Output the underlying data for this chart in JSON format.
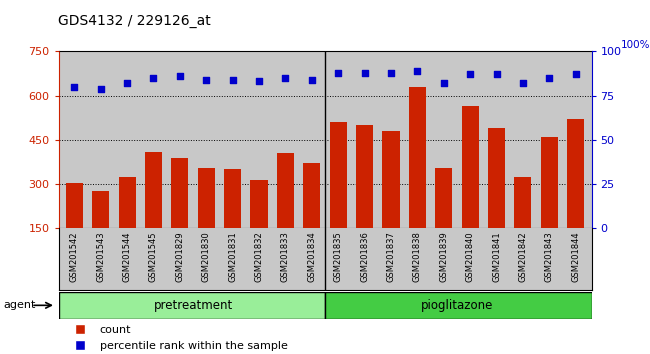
{
  "title": "GDS4132 / 229126_at",
  "samples": [
    "GSM201542",
    "GSM201543",
    "GSM201544",
    "GSM201545",
    "GSM201829",
    "GSM201830",
    "GSM201831",
    "GSM201832",
    "GSM201833",
    "GSM201834",
    "GSM201835",
    "GSM201836",
    "GSM201837",
    "GSM201838",
    "GSM201839",
    "GSM201840",
    "GSM201841",
    "GSM201842",
    "GSM201843",
    "GSM201844"
  ],
  "bar_values": [
    305,
    275,
    325,
    410,
    390,
    355,
    350,
    315,
    405,
    370,
    510,
    500,
    480,
    630,
    355,
    565,
    490,
    325,
    460,
    520
  ],
  "percentile_values": [
    80,
    79,
    82,
    85,
    86,
    84,
    84,
    83,
    85,
    84,
    88,
    88,
    88,
    89,
    82,
    87,
    87,
    82,
    85,
    87
  ],
  "bar_color": "#cc2200",
  "percentile_color": "#0000cc",
  "ylim_left": [
    150,
    750
  ],
  "ylim_right": [
    0,
    100
  ],
  "yticks_left": [
    150,
    300,
    450,
    600,
    750
  ],
  "yticks_right": [
    0,
    25,
    50,
    75,
    100
  ],
  "pretreatment_count": 10,
  "pioglitazone_count": 10,
  "pretreatment_color": "#99ee99",
  "pioglitazone_color": "#44cc44",
  "agent_label": "agent",
  "pretreatment_label": "pretreatment",
  "pioglitazone_label": "pioglitazone",
  "legend_count_label": "count",
  "legend_pct_label": "percentile rank within the sample",
  "plot_bg_color": "#c8c8c8",
  "right_axis_color": "#0000cc",
  "left_axis_color": "#cc2200",
  "bar_bottom": 150
}
